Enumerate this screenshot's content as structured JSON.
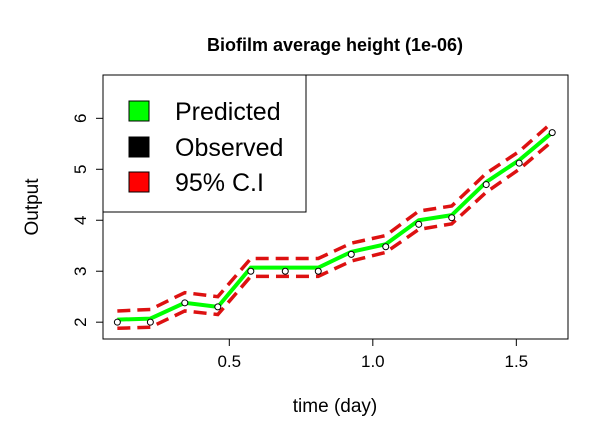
{
  "chart_data": {
    "type": "line",
    "title": "Biofilm average height (1e-06)",
    "xlabel": "time (day)",
    "ylabel": "Output",
    "xlim": [
      0.06,
      1.68
    ],
    "ylim": [
      1.67,
      6.85
    ],
    "x_ticks": [
      0.5,
      1.0,
      1.5
    ],
    "x_tick_labels": [
      "0.5",
      "1.0",
      "1.5"
    ],
    "y_ticks": [
      2,
      3,
      4,
      5,
      6
    ],
    "y_tick_labels": [
      "2",
      "3",
      "4",
      "5",
      "6"
    ],
    "grid": false,
    "legend_position": "top-left",
    "legend": [
      {
        "label": "Predicted",
        "color": "#00ff00"
      },
      {
        "label": "Observed",
        "color": "#000000"
      },
      {
        "label": "95% C.I",
        "color": "#ff0000"
      }
    ],
    "x": [
      0.11,
      0.225,
      0.345,
      0.46,
      0.575,
      0.695,
      0.81,
      0.925,
      1.045,
      1.16,
      1.275,
      1.395,
      1.51,
      1.625
    ],
    "series": [
      {
        "name": "Predicted",
        "style": "solid",
        "color": "#00ff00",
        "values": [
          2.05,
          2.07,
          2.38,
          2.3,
          3.07,
          3.07,
          3.07,
          3.38,
          3.53,
          4.0,
          4.1,
          4.75,
          5.18,
          5.72
        ]
      },
      {
        "name": "Observed",
        "style": "points",
        "color": "#000000",
        "values": [
          2.0,
          2.0,
          2.38,
          2.3,
          3.0,
          3.0,
          3.0,
          3.33,
          3.48,
          3.92,
          4.05,
          4.7,
          5.12,
          5.72
        ]
      },
      {
        "name": "95% C.I",
        "style": "dashed",
        "color": "#dd1111",
        "upper": [
          2.22,
          2.25,
          2.58,
          2.5,
          3.25,
          3.25,
          3.25,
          3.55,
          3.7,
          4.18,
          4.28,
          4.92,
          5.35,
          5.92
        ],
        "lower": [
          1.88,
          1.9,
          2.22,
          2.15,
          2.9,
          2.9,
          2.9,
          3.2,
          3.37,
          3.82,
          3.93,
          4.55,
          5.0,
          5.55
        ]
      }
    ]
  }
}
